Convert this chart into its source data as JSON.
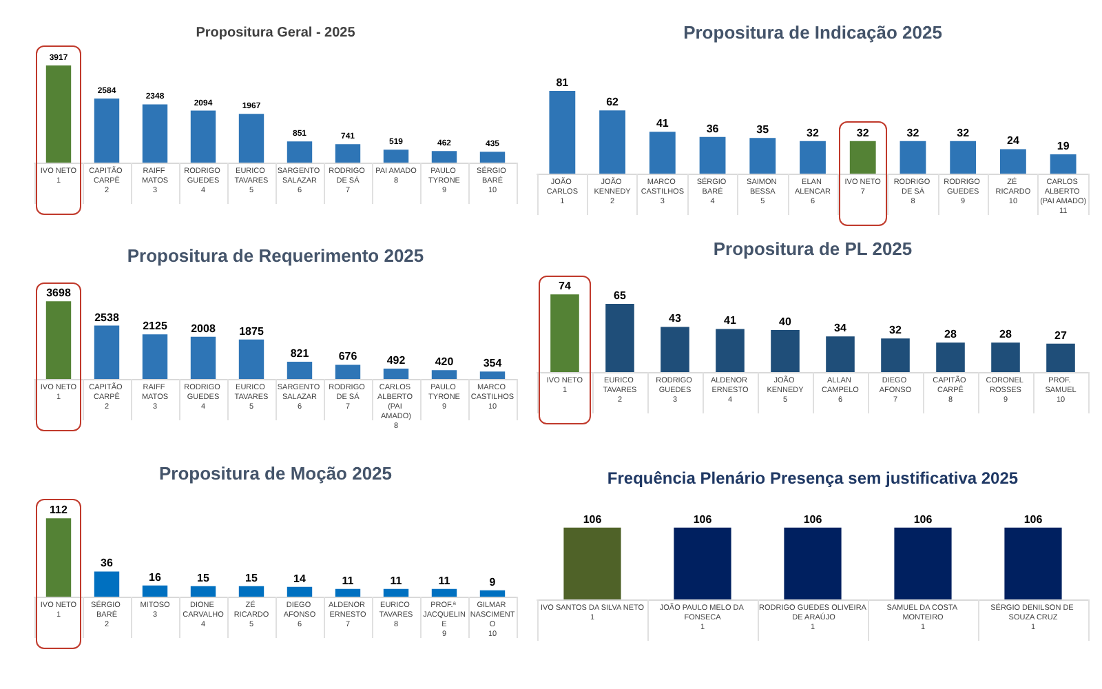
{
  "chart_data": [
    {
      "type": "bar",
      "title": "Propositura Geral - 2025",
      "categories": [
        "IVO NETO\n1",
        "CAPITÃO CARPÊ\n2",
        "RAIFF MATOS\n3",
        "RODRIGO GUEDES\n4",
        "EURICO TAVARES\n5",
        "SARGENTO SALAZAR\n6",
        "RODRIGO DE SÁ\n7",
        "PAI AMADO\n8",
        "PAULO TYRONE\n9",
        "SÉRGIO BARÉ\n10"
      ],
      "values": [
        3917,
        2584,
        2348,
        2094,
        1967,
        851,
        741,
        519,
        462,
        435
      ],
      "colors": [
        "#548235",
        "#2e75b6",
        "#2e75b6",
        "#2e75b6",
        "#2e75b6",
        "#2e75b6",
        "#2e75b6",
        "#2e75b6",
        "#2e75b6",
        "#2e75b6"
      ],
      "data_labels": true
    },
    {
      "type": "bar",
      "title": "Propositura de Indicação 2025",
      "categories": [
        "JOÃO CARLOS\n1",
        "JOÃO KENNEDY\n2",
        "MARCO CASTILHOS\n3",
        "SÉRGIO BARÉ\n4",
        "SAIMON BESSA\n5",
        "ELAN ALENCAR\n6",
        "IVO NETO\n7",
        "RODRIGO DE SÁ\n8",
        "RODRIGO GUEDES\n9",
        "ZÉ RICARDO\n10",
        "CARLOS ALBERTO (PAI AMADO)\n11"
      ],
      "values": [
        81,
        62,
        41,
        36,
        35,
        32,
        32,
        32,
        32,
        24,
        19
      ],
      "colors": [
        "#2e75b6",
        "#2e75b6",
        "#2e75b6",
        "#2e75b6",
        "#2e75b6",
        "#2e75b6",
        "#548235",
        "#2e75b6",
        "#2e75b6",
        "#2e75b6",
        "#2e75b6"
      ],
      "data_labels": true
    },
    {
      "type": "bar",
      "title": "Propositura de Requerimento 2025",
      "categories": [
        "IVO NETO\n1",
        "CAPITÃO CARPÊ\n2",
        "RAIFF MATOS\n3",
        "RODRIGO GUEDES\n4",
        "EURICO TAVARES\n5",
        "SARGENTO SALAZAR\n6",
        "RODRIGO DE SÁ\n7",
        "CARLOS ALBERTO (PAI AMADO)\n8",
        "PAULO TYRONE\n9",
        "MARCO CASTILHOS\n10"
      ],
      "values": [
        3698,
        2538,
        2125,
        2008,
        1875,
        821,
        676,
        492,
        420,
        354
      ],
      "colors": [
        "#548235",
        "#2e75b6",
        "#2e75b6",
        "#2e75b6",
        "#2e75b6",
        "#2e75b6",
        "#2e75b6",
        "#2e75b6",
        "#2e75b6",
        "#2e75b6"
      ],
      "data_labels": true
    },
    {
      "type": "bar",
      "title": "Propositura de PL 2025",
      "categories": [
        "IVO NETO\n1",
        "EURICO TAVARES\n2",
        "RODRIGO GUEDES\n3",
        "ALDENOR ERNESTO\n4",
        "JOÃO KENNEDY\n5",
        "ALLAN CAMPELO\n6",
        "DIEGO AFONSO\n7",
        "CAPITÃO CARPÊ\n8",
        "CORONEL ROSSES\n9",
        "PROF. SAMUEL\n10"
      ],
      "values": [
        74,
        65,
        43,
        41,
        40,
        34,
        32,
        28,
        28,
        27
      ],
      "colors": [
        "#548235",
        "#1f4e79",
        "#1f4e79",
        "#1f4e79",
        "#1f4e79",
        "#1f4e79",
        "#1f4e79",
        "#1f4e79",
        "#1f4e79",
        "#1f4e79"
      ],
      "data_labels": true
    },
    {
      "type": "bar",
      "title": "Propositura de Moção 2025",
      "categories": [
        "IVO NETO\n1",
        "SÉRGIO BARÉ\n2",
        "MITOSO\n3",
        "DIONE CARVALHO\n4",
        "ZÉ RICARDO\n5",
        "DIEGO AFONSO\n6",
        "ALDENOR ERNESTO\n7",
        "EURICO TAVARES\n8",
        "PROF.ª JACQUELINE\n9",
        "GILMAR NASCIMENTO\n10"
      ],
      "values": [
        112,
        36,
        16,
        15,
        15,
        14,
        11,
        11,
        11,
        9
      ],
      "colors": [
        "#548235",
        "#0070c0",
        "#0070c0",
        "#0070c0",
        "#0070c0",
        "#0070c0",
        "#0070c0",
        "#0070c0",
        "#0070c0",
        "#0070c0"
      ],
      "data_labels": true
    },
    {
      "type": "bar",
      "title": "Frequência Plenário Presença sem justificativa 2025",
      "categories": [
        "IVO SANTOS DA SILVA NETO\n1",
        "JOÃO PAULO MELO DA FONSECA\n1",
        "RODRIGO GUEDES OLIVEIRA DE ARAÚJO\n1",
        "SAMUEL DA COSTA MONTEIRO\n1",
        "SÉRGIO DENILSON DE SOUZA CRUZ\n1"
      ],
      "values": [
        106,
        106,
        106,
        106,
        106
      ],
      "colors": [
        "#4f6228",
        "#002060",
        "#002060",
        "#002060",
        "#002060"
      ],
      "data_labels": true
    }
  ]
}
